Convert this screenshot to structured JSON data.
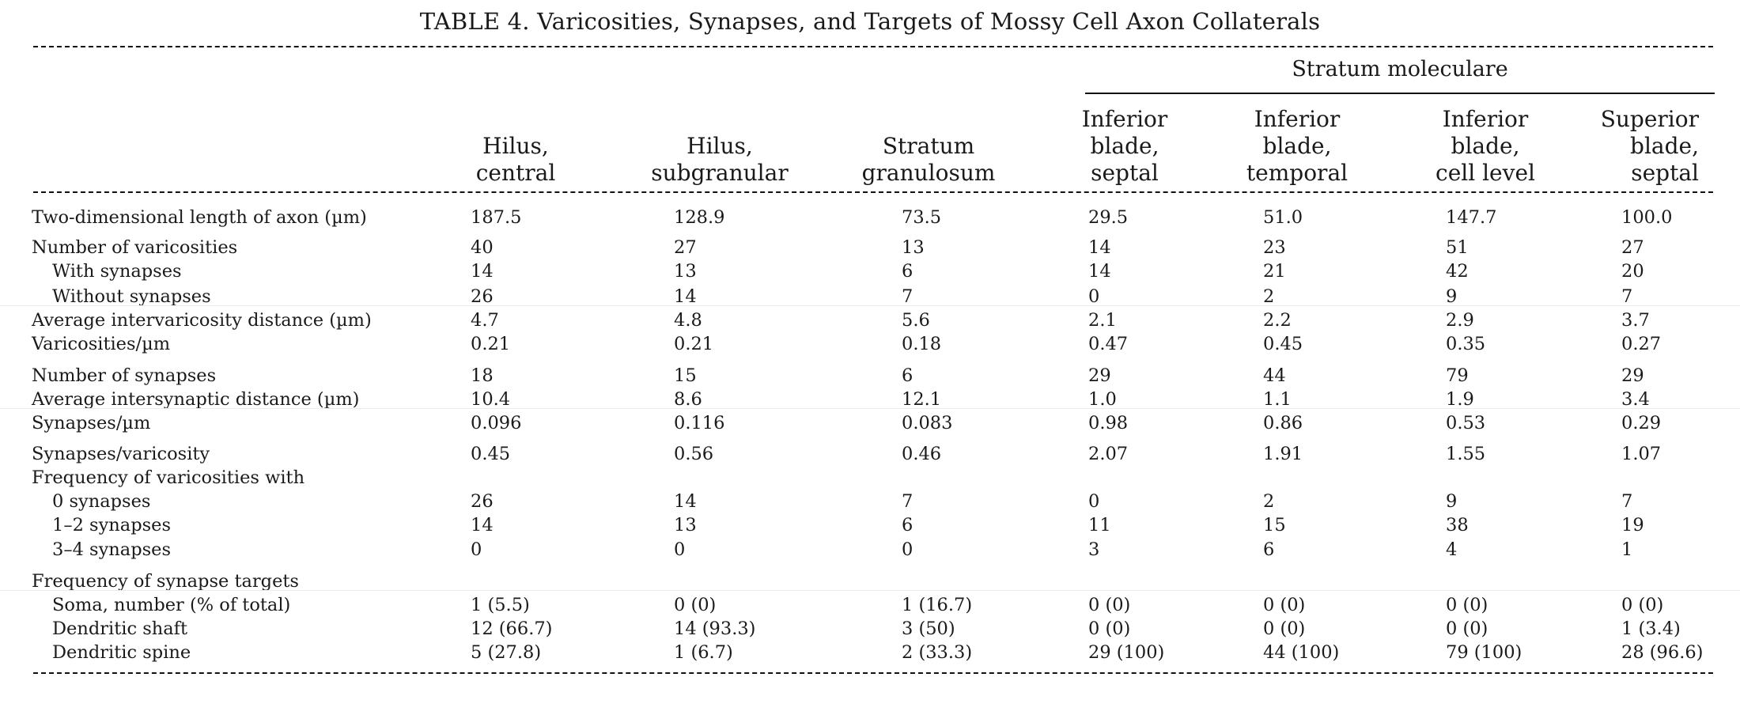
{
  "title": "TABLE 4.  Varicosities, Synapses, and Targets of Mossy Cell Axon Collaterals",
  "group_header": "Stratum moleculare",
  "columns": [
    [
      "Hilus,",
      "central"
    ],
    [
      "Hilus,",
      "subgranular"
    ],
    [
      "Stratum",
      "granulosum"
    ],
    [
      "Inferior",
      "blade,",
      "septal"
    ],
    [
      "Inferior",
      "blade,",
      "temporal"
    ],
    [
      "Inferior",
      "blade,",
      "cell level"
    ],
    [
      "Superior",
      "blade,",
      "septal"
    ]
  ],
  "rows": [
    {
      "label": "Two-dimensional length of axon (µm)",
      "indent": false,
      "values": [
        "187.5",
        "128.9",
        "73.5",
        "29.5",
        "51.0",
        "147.7",
        "100.0"
      ]
    },
    {
      "label": "Number of varicosities",
      "indent": false,
      "values": [
        "40",
        "27",
        "13",
        "14",
        "23",
        "51",
        "27"
      ]
    },
    {
      "label": "With synapses",
      "indent": true,
      "values": [
        "14",
        "13",
        "6",
        "14",
        "21",
        "42",
        "20"
      ]
    },
    {
      "label": "Without synapses",
      "indent": true,
      "values": [
        "26",
        "14",
        "7",
        "0",
        "2",
        "9",
        "7"
      ]
    },
    {
      "label": "Average intervaricosity distance (µm)",
      "indent": false,
      "values": [
        "4.7",
        "4.8",
        "5.6",
        "2.1",
        "2.2",
        "2.9",
        "3.7"
      ]
    },
    {
      "label": "Varicosities/µm",
      "indent": false,
      "values": [
        "0.21",
        "0.21",
        "0.18",
        "0.47",
        "0.45",
        "0.35",
        "0.27"
      ]
    },
    {
      "label": "Number of synapses",
      "indent": false,
      "values": [
        "18",
        "15",
        "6",
        "29",
        "44",
        "79",
        "29"
      ]
    },
    {
      "label": "Average intersynaptic distance (µm)",
      "indent": false,
      "values": [
        "10.4",
        "8.6",
        "12.1",
        "1.0",
        "1.1",
        "1.9",
        "3.4"
      ]
    },
    {
      "label": "Synapses/µm",
      "indent": false,
      "values": [
        "0.096",
        "0.116",
        "0.083",
        "0.98",
        "0.86",
        "0.53",
        "0.29"
      ]
    },
    {
      "label": "Synapses/varicosity",
      "indent": false,
      "values": [
        "0.45",
        "0.56",
        "0.46",
        "2.07",
        "1.91",
        "1.55",
        "1.07"
      ]
    },
    {
      "label": "Frequency of varicosities with",
      "indent": false,
      "values": [
        "",
        "",
        "",
        "",
        "",
        "",
        ""
      ]
    },
    {
      "label": "0 synapses",
      "indent": true,
      "values": [
        "26",
        "14",
        "7",
        "0",
        "2",
        "9",
        "7"
      ]
    },
    {
      "label": "1–2 synapses",
      "indent": true,
      "values": [
        "14",
        "13",
        "6",
        "11",
        "15",
        "38",
        "19"
      ]
    },
    {
      "label": "3–4 synapses",
      "indent": true,
      "values": [
        "0",
        "0",
        "0",
        "3",
        "6",
        "4",
        "1"
      ]
    },
    {
      "label": "Frequency of synapse targets",
      "indent": false,
      "values": [
        "",
        "",
        "",
        "",
        "",
        "",
        ""
      ]
    },
    {
      "label": "Soma, number (% of total)",
      "indent": true,
      "values": [
        "1 (5.5)",
        "0 (0)",
        "1 (16.7)",
        "0 (0)",
        "0 (0)",
        "0 (0)",
        "0 (0)"
      ]
    },
    {
      "label": "Dendritic shaft",
      "indent": true,
      "values": [
        "12 (66.7)",
        "14 (93.3)",
        "3 (50)",
        "0 (0)",
        "0 (0)",
        "0 (0)",
        "1 (3.4)"
      ]
    },
    {
      "label": "Dendritic spine",
      "indent": true,
      "values": [
        "5 (27.8)",
        "1 (6.7)",
        "2 (33.3)",
        "29 (100)",
        "44 (100)",
        "79 (100)",
        "28 (96.6)"
      ]
    }
  ]
}
